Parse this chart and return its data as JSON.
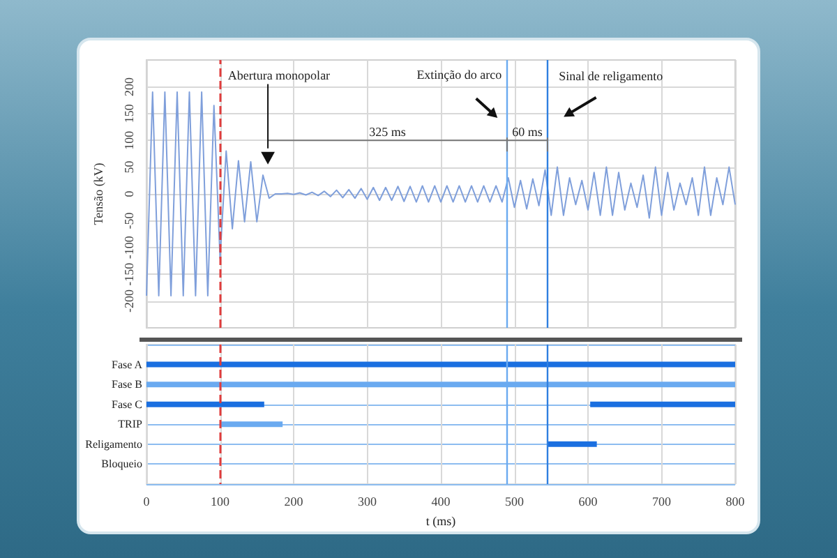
{
  "chart_data": [
    {
      "type": "line",
      "ylabel": "Tensão (kV)",
      "series": [
        {
          "color": "#7f9fdb",
          "x": [
            0,
            8.3,
            16.7,
            25,
            33.3,
            41.7,
            50,
            58.3,
            66.7,
            75,
            83.3,
            91.7,
            100,
            108.3,
            116.7,
            125,
            133.3,
            141.7,
            150,
            158.3,
            166.7,
            175,
            183.3,
            191.7,
            200,
            208.3,
            216.7,
            225,
            233.3,
            241.7,
            250,
            258.3,
            266.7,
            275,
            283.3,
            291.7,
            300,
            308.3,
            316.7,
            325,
            333.3,
            341.7,
            350,
            358.3,
            366.7,
            375,
            383.3,
            391.7,
            400,
            408.3,
            416.7,
            425,
            433.3,
            441.7,
            450,
            458.3,
            466.7,
            475,
            483.3,
            491.7,
            500,
            508.3,
            516.7,
            525,
            533.3,
            541.7,
            550,
            558.3,
            566.7,
            575,
            583.3,
            591.7,
            600,
            608.3,
            616.7,
            625,
            633.3,
            641.7,
            650,
            658.3,
            666.7,
            675,
            683.3,
            691.7,
            700,
            708.3,
            716.7,
            725,
            733.3,
            741.7,
            750,
            758.3,
            766.7,
            775,
            783.3,
            791.7,
            800
          ],
          "values": [
            -190,
            190,
            -190,
            190,
            -190,
            190,
            -190,
            190,
            -190,
            190,
            -190,
            165,
            -120,
            80,
            -65,
            62,
            -52,
            60,
            -52,
            35,
            -8,
            0,
            0,
            1,
            -1,
            2,
            -2,
            3,
            -3,
            5,
            -5,
            7,
            -7,
            8,
            -8,
            10,
            -10,
            12,
            -12,
            12,
            -12,
            14,
            -14,
            14,
            -15,
            15,
            -15,
            15,
            -15,
            15,
            -15,
            15,
            -15,
            15,
            -15,
            15,
            -15,
            15,
            -15,
            30,
            -25,
            25,
            -28,
            28,
            -22,
            45,
            -40,
            50,
            -40,
            30,
            -20,
            25,
            -30,
            40,
            -40,
            50,
            -40,
            40,
            -30,
            20,
            -25,
            35,
            -45,
            50,
            -40,
            40,
            -30,
            20,
            -20,
            30,
            -40,
            50,
            -40,
            30,
            -20,
            50,
            -20
          ]
        }
      ],
      "xlim": [
        0,
        800
      ],
      "xticks": [
        0,
        100,
        200,
        300,
        400,
        500,
        600,
        700,
        800
      ],
      "ylim": [
        -250,
        250
      ],
      "yticks": [
        -200,
        -150,
        -100,
        -50,
        0,
        50,
        100,
        150,
        200
      ],
      "tick_labels": "y",
      "grid": true,
      "ref_lines": [
        {
          "axis": "x",
          "value": 100,
          "color": "#e03c3c",
          "line_style": "dashed"
        },
        {
          "axis": "x",
          "value": 490,
          "color": "#6aaaf0"
        },
        {
          "axis": "x",
          "value": 545,
          "color": "#2f7fe0"
        }
      ],
      "annotations": [
        "Abertura monopolar",
        "325 ms",
        "Extinção do arco",
        "60 ms",
        "Sinal de religamento"
      ]
    },
    {
      "type": "bar",
      "orientation": "horizontal",
      "xlabel": "t (ms)",
      "categories": [
        "Fase A",
        "Fase B",
        "Fase C",
        "TRIP",
        "Religamento",
        "Bloqueio"
      ],
      "series": [
        {
          "values": [
            800,
            800,
            160,
            85,
            67,
            null
          ],
          "base": [
            0,
            0,
            0,
            100,
            545,
            null
          ],
          "colors": [
            "#1a6fe0",
            "#6aaaf0",
            "#1a6fe0",
            "#6aaaf0",
            "#1a6fe0",
            null
          ]
        },
        {
          "values": [
            null,
            null,
            197,
            null,
            null,
            null
          ],
          "base": [
            null,
            null,
            603,
            null,
            null,
            null
          ],
          "colors": [
            null,
            null,
            "#1a6fe0",
            null,
            null,
            null
          ]
        }
      ],
      "xlim": [
        0,
        800
      ],
      "xticks": [
        0,
        100,
        200,
        300,
        400,
        500,
        600,
        700,
        800
      ],
      "grid": true,
      "ref_lines": [
        {
          "axis": "x",
          "value": 100,
          "color": "#e03c3c",
          "line_style": "dashed"
        },
        {
          "axis": "x",
          "value": 490,
          "color": "#6aaaf0"
        },
        {
          "axis": "x",
          "value": 545,
          "color": "#2f7fe0"
        }
      ]
    }
  ]
}
